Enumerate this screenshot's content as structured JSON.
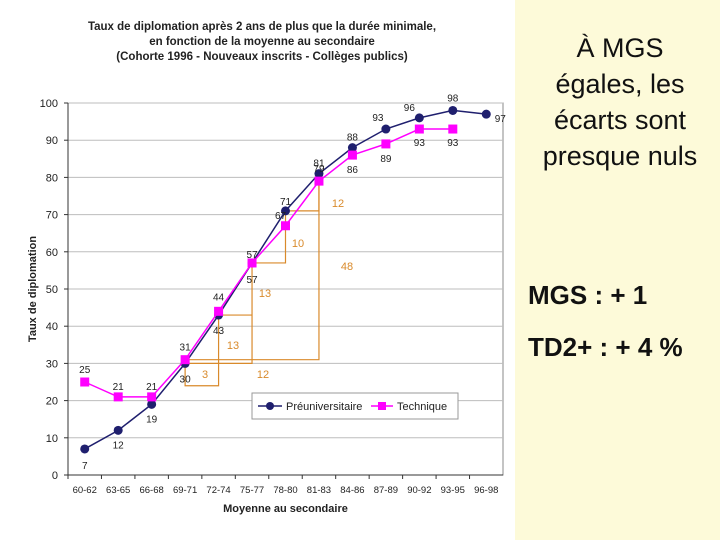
{
  "slide": {
    "note": "À MGS égales, les écarts sont presque nuls",
    "mgs_gain": "MGS : + 1",
    "td2_gain": "TD2+ : + 4 %"
  },
  "chart_data": {
    "type": "line",
    "title_lines": [
      "Taux de diplomation après 2 ans de plus que la durée minimale,",
      "en fonction de la moyenne au secondaire",
      "(Cohorte 1996 - Nouveaux inscrits - Collèges publics)"
    ],
    "xlabel": "Moyenne au secondaire",
    "ylabel": "Taux de diplomation",
    "ylim": [
      0,
      100
    ],
    "yticks": [
      0,
      10,
      20,
      30,
      40,
      50,
      60,
      70,
      80,
      90,
      100
    ],
    "categories": [
      "60-62",
      "63-65",
      "66-68",
      "69-71",
      "72-74",
      "75-77",
      "78-80",
      "81-83",
      "84-86",
      "87-89",
      "90-92",
      "93-95",
      "96-98"
    ],
    "series": [
      {
        "name": "Préuniversitaire",
        "color": "#1f1f6e",
        "marker": "circle",
        "values": [
          7,
          12,
          19,
          30,
          43,
          57,
          71,
          81,
          88,
          93,
          96,
          98,
          97
        ],
        "labels": [
          "7",
          "12",
          "19",
          "30",
          "43",
          "57",
          "71",
          "81",
          "88",
          "93",
          "96",
          "98",
          "97"
        ]
      },
      {
        "name": "Technique",
        "color": "#ff00ff",
        "marker": "square",
        "values": [
          25,
          21,
          21,
          31,
          44,
          57,
          67,
          79,
          86,
          89,
          93,
          93,
          null
        ],
        "labels": [
          "25",
          "21",
          "21",
          "31",
          "44",
          "57",
          "67",
          "79",
          "86",
          "89",
          "93",
          "93",
          ""
        ]
      }
    ],
    "annotations": [
      "3",
      "13",
      "13",
      "10",
      "12",
      "48",
      "12"
    ],
    "legend_position": "bottom-right"
  }
}
